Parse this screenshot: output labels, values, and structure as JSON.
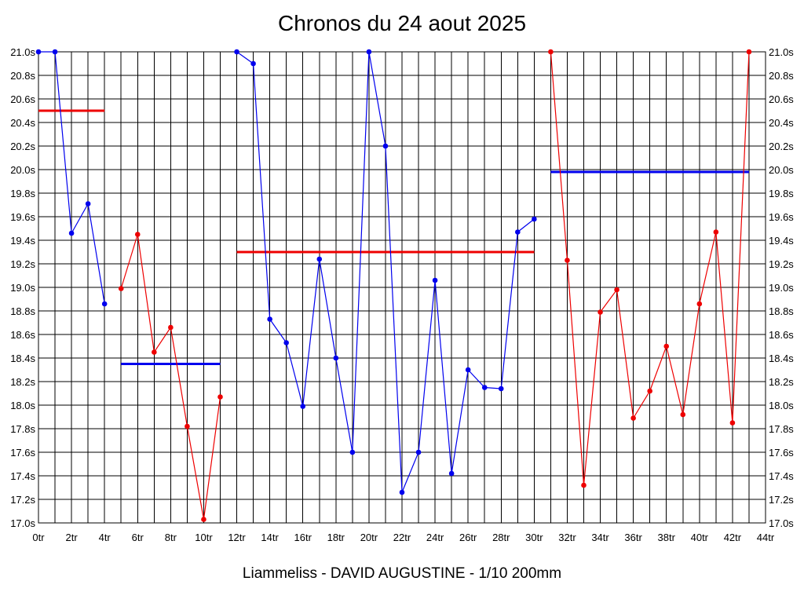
{
  "colors": {
    "background": "#ffffff",
    "grid": "#000000",
    "series_blue": "#0000ee",
    "series_red": "#ee0000"
  },
  "chart_data": {
    "type": "line",
    "title": "Chronos du 24 aout 2025",
    "xlabel": "Liammeliss - DAVID AUGUSTINE - 1/10 200mm",
    "ylabel": "",
    "xlim": [
      0,
      44
    ],
    "ylim": [
      17.0,
      21.0
    ],
    "x_tick_labels": [
      "0tr",
      "2tr",
      "4tr",
      "6tr",
      "8tr",
      "10tr",
      "12tr",
      "14tr",
      "16tr",
      "18tr",
      "20tr",
      "22tr",
      "24tr",
      "26tr",
      "28tr",
      "30tr",
      "32tr",
      "34tr",
      "36tr",
      "38tr",
      "40tr",
      "42tr",
      "44tr"
    ],
    "y_tick_labels": [
      "17.0s",
      "17.2s",
      "17.4s",
      "17.6s",
      "17.8s",
      "18.0s",
      "18.2s",
      "18.4s",
      "18.6s",
      "18.8s",
      "19.0s",
      "19.2s",
      "19.4s",
      "19.6s",
      "19.8s",
      "20.0s",
      "20.2s",
      "20.4s",
      "20.6s",
      "20.8s",
      "21.0s"
    ],
    "grid": true,
    "legend": "none",
    "series": [
      {
        "color": "#0000ee",
        "x": [
          0,
          1,
          2,
          3,
          4
        ],
        "y": [
          21.0,
          21.0,
          19.46,
          19.71,
          18.86
        ],
        "average": 20.5,
        "average_color": "#ee0000"
      },
      {
        "color": "#ee0000",
        "x": [
          5,
          6,
          7,
          8,
          9,
          10,
          11
        ],
        "y": [
          18.99,
          19.45,
          18.45,
          18.66,
          17.82,
          17.03,
          18.07
        ],
        "average": 18.35,
        "average_color": "#0000ee"
      },
      {
        "color": "#0000ee",
        "x": [
          12,
          13,
          14,
          15,
          16,
          17,
          18,
          19,
          20,
          21,
          22,
          23,
          24,
          25,
          26,
          27,
          28,
          29,
          30
        ],
        "y": [
          21.0,
          20.9,
          18.73,
          18.53,
          17.99,
          19.24,
          18.4,
          17.6,
          21.0,
          20.2,
          17.26,
          17.6,
          19.06,
          17.42,
          18.3,
          18.15,
          18.14,
          19.47,
          19.58
        ],
        "average": 19.3,
        "average_color": "#ee0000"
      },
      {
        "color": "#ee0000",
        "x": [
          31,
          32,
          33,
          34,
          35,
          36,
          37,
          38,
          39,
          40,
          41,
          42,
          43
        ],
        "y": [
          21.0,
          19.23,
          17.32,
          18.79,
          18.98,
          17.89,
          18.12,
          18.5,
          17.92,
          18.86,
          19.47,
          17.85,
          21.0
        ],
        "average": 19.98,
        "average_color": "#0000ee"
      }
    ]
  }
}
